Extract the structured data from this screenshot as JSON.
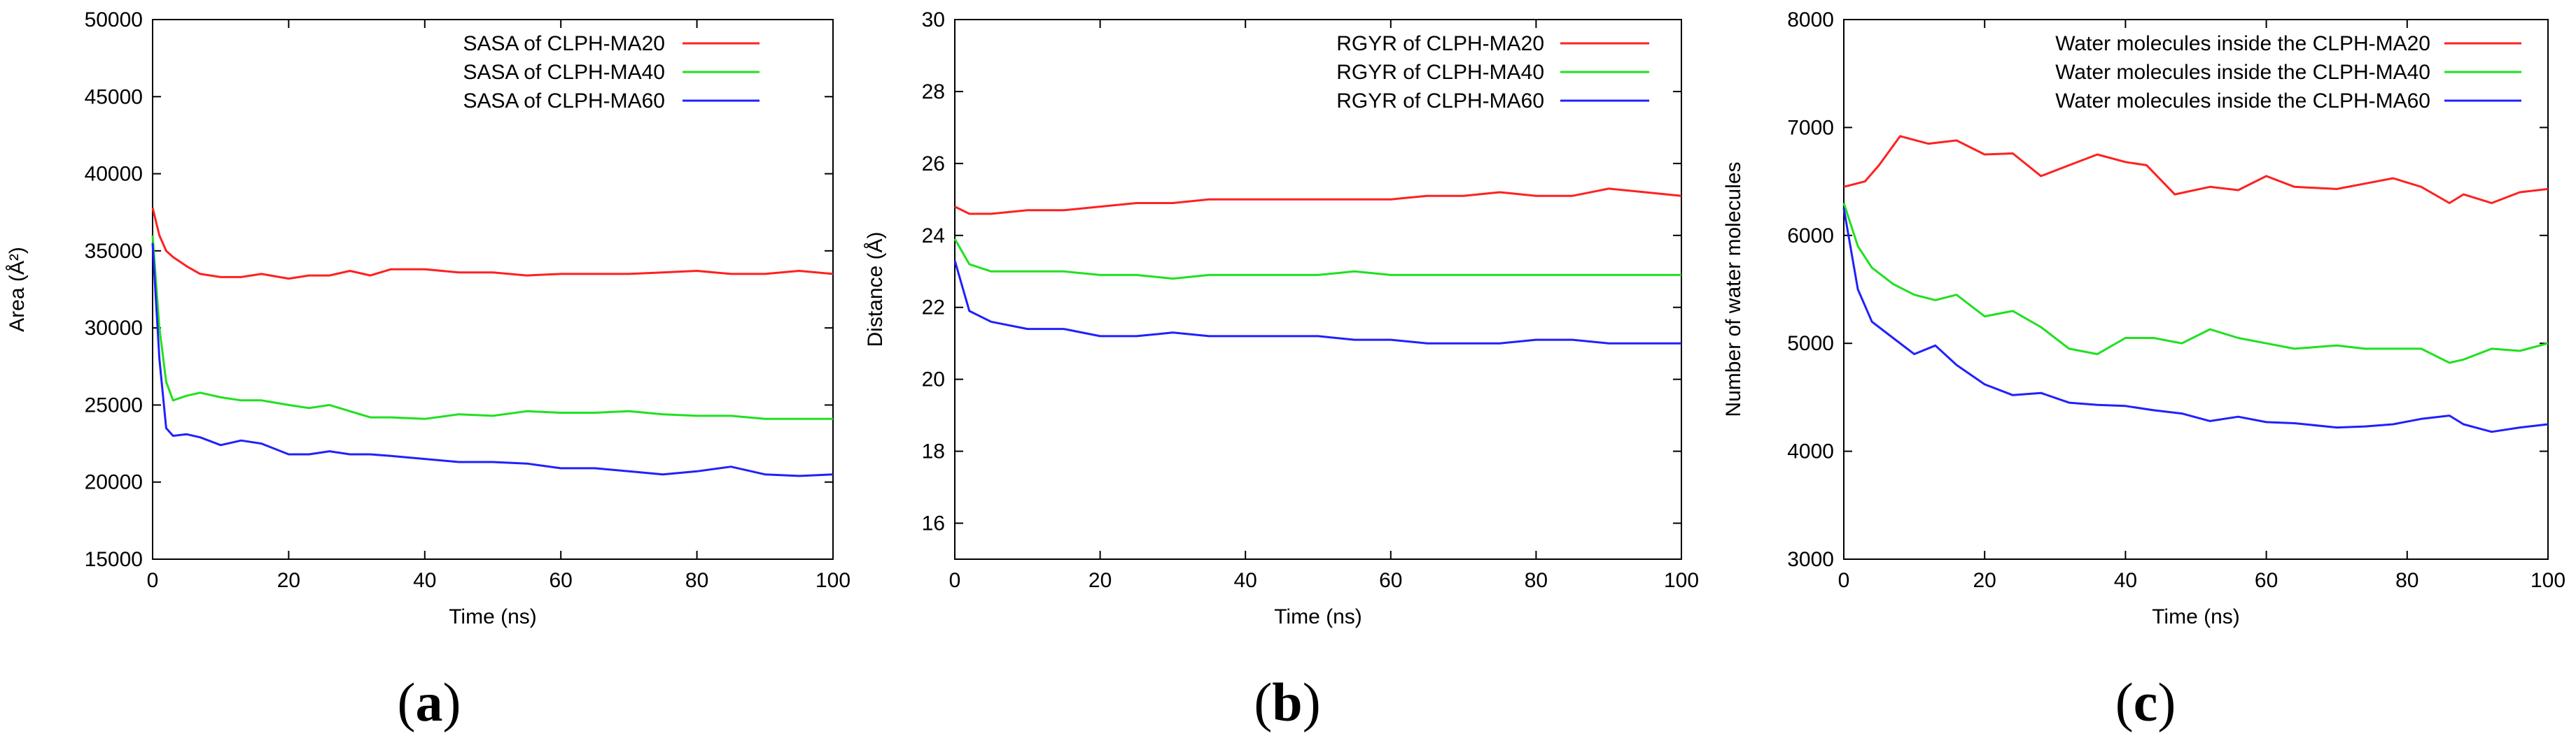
{
  "chart_data": [
    {
      "panel_label": "a",
      "type": "line",
      "title": "",
      "xlabel": "Time (ns)",
      "ylabel": "Area (Å²)",
      "xlim": [
        0,
        100
      ],
      "ylim": [
        15000,
        50000
      ],
      "xticks": [
        0,
        20,
        40,
        60,
        80,
        100
      ],
      "yticks": [
        15000,
        20000,
        25000,
        30000,
        35000,
        40000,
        45000,
        50000
      ],
      "legend_position": "top-right",
      "grid": false,
      "series": [
        {
          "name": "SASA of CLPH-MA20",
          "color": "#ff2020",
          "x": [
            0,
            1,
            2,
            3,
            5,
            7,
            10,
            13,
            16,
            20,
            23,
            26,
            29,
            32,
            35,
            40,
            45,
            50,
            55,
            60,
            65,
            70,
            75,
            80,
            85,
            90,
            95,
            100
          ],
          "y": [
            37800,
            36000,
            35000,
            34600,
            34000,
            33500,
            33300,
            33300,
            33500,
            33200,
            33400,
            33400,
            33700,
            33400,
            33800,
            33800,
            33600,
            33600,
            33400,
            33500,
            33500,
            33500,
            33600,
            33700,
            33500,
            33500,
            33700,
            33500
          ]
        },
        {
          "name": "SASA of CLPH-MA40",
          "color": "#20e020",
          "x": [
            0,
            1,
            2,
            3,
            5,
            7,
            10,
            13,
            16,
            20,
            23,
            26,
            29,
            32,
            35,
            40,
            45,
            50,
            55,
            60,
            65,
            70,
            75,
            80,
            85,
            90,
            95,
            100
          ],
          "y": [
            36000,
            30000,
            26500,
            25300,
            25600,
            25800,
            25500,
            25300,
            25300,
            25000,
            24800,
            25000,
            24600,
            24200,
            24200,
            24100,
            24400,
            24300,
            24600,
            24500,
            24500,
            24600,
            24400,
            24300,
            24300,
            24100,
            24100,
            24100
          ]
        },
        {
          "name": "SASA of CLPH-MA60",
          "color": "#2020ff",
          "x": [
            0,
            1,
            2,
            3,
            5,
            7,
            10,
            13,
            16,
            20,
            23,
            26,
            29,
            32,
            35,
            40,
            45,
            50,
            55,
            60,
            65,
            70,
            75,
            80,
            85,
            90,
            95,
            100
          ],
          "y": [
            35500,
            28000,
            23500,
            23000,
            23100,
            22900,
            22400,
            22700,
            22500,
            21800,
            21800,
            22000,
            21800,
            21800,
            21700,
            21500,
            21300,
            21300,
            21200,
            20900,
            20900,
            20700,
            20500,
            20700,
            21000,
            20500,
            20400,
            20500
          ]
        }
      ]
    },
    {
      "panel_label": "b",
      "type": "line",
      "title": "",
      "xlabel": "Time (ns)",
      "ylabel": "Distance (Å)",
      "xlim": [
        0,
        100
      ],
      "ylim": [
        15,
        30
      ],
      "xticks": [
        0,
        20,
        40,
        60,
        80,
        100
      ],
      "yticks": [
        16,
        18,
        20,
        22,
        24,
        26,
        28,
        30
      ],
      "legend_position": "top-right",
      "grid": false,
      "series": [
        {
          "name": "RGYR of CLPH-MA20",
          "color": "#ff2020",
          "x": [
            0,
            2,
            5,
            10,
            15,
            20,
            25,
            30,
            35,
            40,
            45,
            50,
            55,
            60,
            65,
            70,
            75,
            80,
            85,
            90,
            95,
            100
          ],
          "y": [
            24.8,
            24.6,
            24.6,
            24.7,
            24.7,
            24.8,
            24.9,
            24.9,
            25.0,
            25.0,
            25.0,
            25.0,
            25.0,
            25.0,
            25.1,
            25.1,
            25.2,
            25.1,
            25.1,
            25.3,
            25.2,
            25.1
          ]
        },
        {
          "name": "RGYR of CLPH-MA40",
          "color": "#20e020",
          "x": [
            0,
            2,
            5,
            10,
            15,
            20,
            25,
            30,
            35,
            40,
            45,
            50,
            55,
            60,
            65,
            70,
            75,
            80,
            85,
            90,
            95,
            100
          ],
          "y": [
            23.9,
            23.2,
            23.0,
            23.0,
            23.0,
            22.9,
            22.9,
            22.8,
            22.9,
            22.9,
            22.9,
            22.9,
            23.0,
            22.9,
            22.9,
            22.9,
            22.9,
            22.9,
            22.9,
            22.9,
            22.9,
            22.9
          ]
        },
        {
          "name": "RGYR of CLPH-MA60",
          "color": "#2020ff",
          "x": [
            0,
            2,
            5,
            10,
            15,
            20,
            25,
            30,
            35,
            40,
            45,
            50,
            55,
            60,
            65,
            70,
            75,
            80,
            85,
            90,
            95,
            100
          ],
          "y": [
            23.3,
            21.9,
            21.6,
            21.4,
            21.4,
            21.2,
            21.2,
            21.3,
            21.2,
            21.2,
            21.2,
            21.2,
            21.1,
            21.1,
            21.0,
            21.0,
            21.0,
            21.1,
            21.1,
            21.0,
            21.0,
            21.0
          ]
        }
      ]
    },
    {
      "panel_label": "c",
      "type": "line",
      "title": "",
      "xlabel": "Time (ns)",
      "ylabel": "Number of water molecules",
      "xlim": [
        0,
        100
      ],
      "ylim": [
        3000,
        8000
      ],
      "xticks": [
        0,
        20,
        40,
        60,
        80,
        100
      ],
      "yticks": [
        3000,
        4000,
        5000,
        6000,
        7000,
        8000
      ],
      "legend_position": "top-right",
      "grid": false,
      "series": [
        {
          "name": "Water molecules inside the CLPH-MA20",
          "color": "#ff2020",
          "x": [
            0,
            3,
            5,
            8,
            12,
            16,
            20,
            24,
            28,
            32,
            36,
            40,
            43,
            47,
            52,
            56,
            60,
            64,
            70,
            74,
            78,
            82,
            86,
            88,
            92,
            96,
            100
          ],
          "y": [
            6450,
            6500,
            6650,
            6920,
            6850,
            6880,
            6750,
            6760,
            6550,
            6650,
            6750,
            6680,
            6650,
            6380,
            6450,
            6420,
            6550,
            6450,
            6430,
            6480,
            6530,
            6450,
            6300,
            6380,
            6300,
            6400,
            6430
          ]
        },
        {
          "name": "Water molecules inside the CLPH-MA40",
          "color": "#20e020",
          "x": [
            0,
            2,
            4,
            7,
            10,
            13,
            16,
            20,
            24,
            28,
            32,
            36,
            40,
            44,
            48,
            52,
            56,
            60,
            64,
            70,
            74,
            78,
            82,
            86,
            88,
            92,
            96,
            100
          ],
          "y": [
            6300,
            5900,
            5700,
            5550,
            5450,
            5400,
            5450,
            5250,
            5300,
            5150,
            4950,
            4900,
            5050,
            5050,
            5000,
            5130,
            5050,
            5000,
            4950,
            4980,
            4950,
            4950,
            4950,
            4820,
            4850,
            4950,
            4930,
            5000
          ]
        },
        {
          "name": "Water molecules inside the CLPH-MA60",
          "color": "#2020ff",
          "x": [
            0,
            2,
            4,
            7,
            10,
            13,
            16,
            20,
            24,
            28,
            32,
            36,
            40,
            44,
            48,
            52,
            56,
            60,
            64,
            70,
            74,
            78,
            82,
            86,
            88,
            92,
            96,
            100
          ],
          "y": [
            6250,
            5500,
            5200,
            5050,
            4900,
            4980,
            4800,
            4620,
            4520,
            4540,
            4450,
            4430,
            4420,
            4380,
            4350,
            4280,
            4320,
            4270,
            4260,
            4220,
            4230,
            4250,
            4300,
            4330,
            4250,
            4180,
            4220,
            4250
          ]
        }
      ]
    }
  ]
}
